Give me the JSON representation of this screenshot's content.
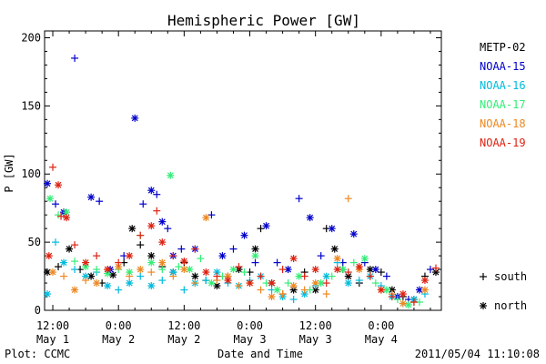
{
  "chart_data": {
    "type": "scatter",
    "title": "Hemispheric Power [GW]",
    "ylabel": "P [GW]",
    "xlabel": "Date and Time",
    "ylim": [
      0,
      205
    ],
    "yticks": [
      "0",
      "50",
      "100",
      "150",
      "200"
    ],
    "xticks": [
      {
        "hour": 12,
        "line1": "12:00",
        "line2": "May 1"
      },
      {
        "hour": 24,
        "line1": "0:00",
        "line2": "May 2"
      },
      {
        "hour": 36,
        "line1": "12:00",
        "line2": "May 2"
      },
      {
        "hour": 48,
        "line1": "0:00",
        "line2": "May 3"
      },
      {
        "hour": 60,
        "line1": "12:00",
        "line2": "May 3"
      },
      {
        "hour": 72,
        "line1": "0:00",
        "line2": "May 4"
      }
    ],
    "xlim_hours": [
      10.5,
      83
    ],
    "hemisphere_legend": [
      {
        "symbol": "+",
        "label": "south"
      },
      {
        "symbol": "*",
        "label": "north"
      }
    ],
    "series": [
      {
        "name": "METP-02",
        "color": "#000000",
        "values": [
          [
            11,
            28
          ],
          [
            13,
            32
          ],
          [
            15,
            45
          ],
          [
            17,
            30
          ],
          [
            19,
            25
          ],
          [
            21,
            20
          ],
          [
            23,
            26
          ],
          [
            25,
            35
          ],
          [
            26.5,
            60
          ],
          [
            28,
            48
          ],
          [
            30,
            40
          ],
          [
            32,
            32
          ],
          [
            34,
            28
          ],
          [
            36,
            35
          ],
          [
            38,
            25
          ],
          [
            40,
            22
          ],
          [
            42,
            18
          ],
          [
            44,
            25
          ],
          [
            46,
            30
          ],
          [
            48,
            28
          ],
          [
            49,
            45
          ],
          [
            50,
            60
          ],
          [
            52,
            20
          ],
          [
            54,
            12
          ],
          [
            56,
            15
          ],
          [
            58,
            28
          ],
          [
            60,
            15
          ],
          [
            62,
            60
          ],
          [
            63.5,
            45
          ],
          [
            65,
            30
          ],
          [
            66,
            25
          ],
          [
            68,
            20
          ],
          [
            70,
            30
          ],
          [
            72,
            28
          ],
          [
            74,
            15
          ],
          [
            76,
            10
          ],
          [
            78,
            8
          ],
          [
            80,
            25
          ],
          [
            82,
            28
          ]
        ]
      },
      {
        "name": "NOAA-15",
        "color": "#0000cc",
        "values": [
          [
            11,
            93
          ],
          [
            12.5,
            78
          ],
          [
            14,
            72
          ],
          [
            16,
            185
          ],
          [
            19,
            83
          ],
          [
            20.5,
            80
          ],
          [
            22.5,
            30
          ],
          [
            25,
            40
          ],
          [
            27,
            141
          ],
          [
            28.5,
            78
          ],
          [
            30,
            88
          ],
          [
            31,
            85
          ],
          [
            32,
            65
          ],
          [
            33,
            60
          ],
          [
            34,
            40
          ],
          [
            35.5,
            45
          ],
          [
            38,
            45
          ],
          [
            41,
            70
          ],
          [
            43,
            40
          ],
          [
            45,
            45
          ],
          [
            47,
            55
          ],
          [
            49,
            35
          ],
          [
            51,
            62
          ],
          [
            53,
            35
          ],
          [
            55,
            30
          ],
          [
            57,
            82
          ],
          [
            59,
            68
          ],
          [
            61,
            40
          ],
          [
            63,
            60
          ],
          [
            65,
            35
          ],
          [
            67,
            56
          ],
          [
            69,
            35
          ],
          [
            71,
            30
          ],
          [
            73,
            25
          ],
          [
            75,
            10
          ],
          [
            77,
            8
          ],
          [
            79,
            15
          ],
          [
            81,
            30
          ]
        ]
      },
      {
        "name": "NOAA-16",
        "color": "#00bbdd",
        "values": [
          [
            11,
            12
          ],
          [
            12.5,
            50
          ],
          [
            14,
            35
          ],
          [
            16,
            30
          ],
          [
            18,
            25
          ],
          [
            20,
            28
          ],
          [
            22,
            18
          ],
          [
            24,
            15
          ],
          [
            26,
            20
          ],
          [
            28,
            25
          ],
          [
            30,
            18
          ],
          [
            32,
            22
          ],
          [
            34,
            28
          ],
          [
            36,
            15
          ],
          [
            38,
            20
          ],
          [
            40,
            22
          ],
          [
            42,
            28
          ],
          [
            44,
            20
          ],
          [
            46,
            18
          ],
          [
            48,
            22
          ],
          [
            50,
            25
          ],
          [
            52,
            15
          ],
          [
            54,
            10
          ],
          [
            56,
            8
          ],
          [
            58,
            12
          ],
          [
            60,
            18
          ],
          [
            62,
            25
          ],
          [
            64,
            35
          ],
          [
            66,
            20
          ],
          [
            68,
            22
          ],
          [
            70,
            25
          ],
          [
            72,
            18
          ],
          [
            74,
            10
          ],
          [
            76,
            5
          ],
          [
            78,
            8
          ],
          [
            80,
            12
          ]
        ]
      },
      {
        "name": "NOAA-17",
        "color": "#33ee77",
        "values": [
          [
            11.5,
            82
          ],
          [
            13,
            70
          ],
          [
            14.5,
            72
          ],
          [
            16,
            36
          ],
          [
            18,
            32
          ],
          [
            20,
            30
          ],
          [
            22,
            27
          ],
          [
            24,
            30
          ],
          [
            26,
            28
          ],
          [
            28,
            55
          ],
          [
            30,
            35
          ],
          [
            32,
            30
          ],
          [
            33.5,
            99
          ],
          [
            35,
            32
          ],
          [
            37,
            30
          ],
          [
            39,
            38
          ],
          [
            41,
            20
          ],
          [
            43,
            25
          ],
          [
            45,
            30
          ],
          [
            47,
            28
          ],
          [
            49,
            40
          ],
          [
            51,
            20
          ],
          [
            53,
            15
          ],
          [
            55,
            20
          ],
          [
            57,
            25
          ],
          [
            59,
            15
          ],
          [
            61,
            20
          ],
          [
            63,
            25
          ],
          [
            65,
            30
          ],
          [
            67,
            35
          ],
          [
            69,
            38
          ],
          [
            71,
            20
          ],
          [
            73,
            15
          ],
          [
            75,
            8
          ],
          [
            77,
            4
          ],
          [
            79,
            6
          ]
        ]
      },
      {
        "name": "NOAA-18",
        "color": "#ee8822",
        "values": [
          [
            12,
            28
          ],
          [
            14,
            25
          ],
          [
            16,
            15
          ],
          [
            18,
            22
          ],
          [
            20,
            20
          ],
          [
            22,
            30
          ],
          [
            24,
            32
          ],
          [
            26,
            25
          ],
          [
            28,
            30
          ],
          [
            30,
            28
          ],
          [
            32,
            35
          ],
          [
            34,
            25
          ],
          [
            36,
            30
          ],
          [
            38,
            20
          ],
          [
            40,
            68
          ],
          [
            42,
            22
          ],
          [
            44,
            25
          ],
          [
            46,
            18
          ],
          [
            48,
            20
          ],
          [
            50,
            15
          ],
          [
            52,
            10
          ],
          [
            54,
            12
          ],
          [
            56,
            18
          ],
          [
            58,
            15
          ],
          [
            60,
            20
          ],
          [
            62,
            12
          ],
          [
            64,
            38
          ],
          [
            66,
            82
          ],
          [
            68,
            30
          ],
          [
            70,
            25
          ],
          [
            72,
            15
          ],
          [
            74,
            12
          ],
          [
            76,
            5
          ],
          [
            78,
            6
          ],
          [
            80,
            15
          ]
        ]
      },
      {
        "name": "NOAA-19",
        "color": "#dd2211",
        "values": [
          [
            11.3,
            40
          ],
          [
            12,
            105
          ],
          [
            13,
            92
          ],
          [
            13.5,
            69
          ],
          [
            14.5,
            68
          ],
          [
            16,
            48
          ],
          [
            18,
            35
          ],
          [
            20,
            40
          ],
          [
            22,
            30
          ],
          [
            24,
            35
          ],
          [
            26,
            40
          ],
          [
            28,
            55
          ],
          [
            30,
            62
          ],
          [
            31,
            73
          ],
          [
            32,
            50
          ],
          [
            34,
            40
          ],
          [
            36,
            36
          ],
          [
            38,
            45
          ],
          [
            40,
            28
          ],
          [
            42,
            25
          ],
          [
            44,
            22
          ],
          [
            46,
            32
          ],
          [
            48,
            20
          ],
          [
            50,
            25
          ],
          [
            52,
            20
          ],
          [
            54,
            30
          ],
          [
            56,
            38
          ],
          [
            58,
            25
          ],
          [
            60,
            30
          ],
          [
            62,
            20
          ],
          [
            64,
            30
          ],
          [
            66,
            28
          ],
          [
            68,
            32
          ],
          [
            70,
            25
          ],
          [
            72,
            15
          ],
          [
            74,
            10
          ],
          [
            76,
            12
          ],
          [
            78,
            6
          ],
          [
            80,
            22
          ],
          [
            82,
            31
          ]
        ]
      }
    ]
  },
  "footer": {
    "plot_credit": "Plot: CCMC",
    "timestamp": "2011/05/04 11:10:08"
  }
}
